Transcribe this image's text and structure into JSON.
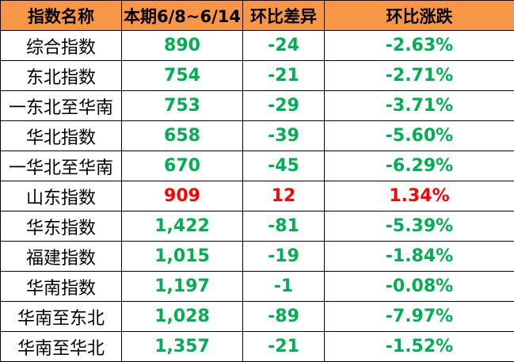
{
  "colors": {
    "header_bg": "#F79646",
    "down": "#00B050",
    "up": "#FF0000"
  },
  "headers": [
    "指数名称",
    "本期6/8~6/14",
    "环比差异",
    "环比涨跌"
  ],
  "rows": [
    {
      "name": "综合指数",
      "value": "890",
      "diff": "-24",
      "pct": "-2.63%",
      "trend": "down"
    },
    {
      "name": "东北指数",
      "value": "754",
      "diff": "-21",
      "pct": "-2.71%",
      "trend": "down"
    },
    {
      "name": "一东北至华南",
      "value": "753",
      "diff": "-29",
      "pct": "-3.71%",
      "trend": "down"
    },
    {
      "name": "华北指数",
      "value": "658",
      "diff": "-39",
      "pct": "-5.60%",
      "trend": "down"
    },
    {
      "name": "一华北至华南",
      "value": "670",
      "diff": "-45",
      "pct": "-6.29%",
      "trend": "down"
    },
    {
      "name": "山东指数",
      "value": "909",
      "diff": "12",
      "pct": "1.34%",
      "trend": "up"
    },
    {
      "name": "华东指数",
      "value": "1,422",
      "diff": "-81",
      "pct": "-5.39%",
      "trend": "down"
    },
    {
      "name": "福建指数",
      "value": "1,015",
      "diff": "-19",
      "pct": "-1.84%",
      "trend": "down"
    },
    {
      "name": "华南指数",
      "value": "1,197",
      "diff": "-1",
      "pct": "-0.08%",
      "trend": "down"
    },
    {
      "name": "华南至东北",
      "value": "1,028",
      "diff": "-89",
      "pct": "-7.97%",
      "trend": "down"
    },
    {
      "name": "华南至华北",
      "value": "1,357",
      "diff": "-21",
      "pct": "-1.52%",
      "trend": "down"
    }
  ]
}
